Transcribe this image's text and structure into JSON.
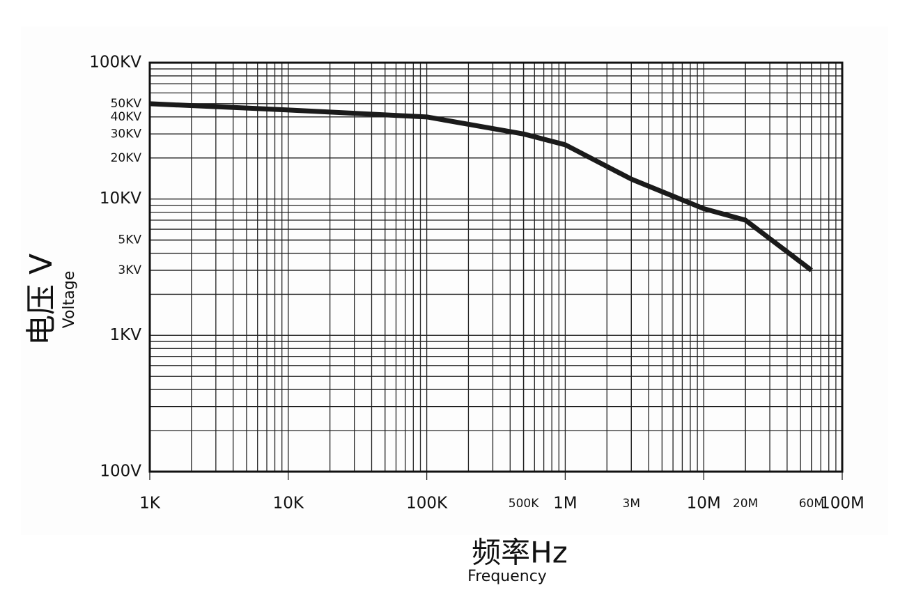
{
  "chart_data": {
    "type": "line",
    "x_label": "频率Hz",
    "x_label_sub": "Frequency",
    "y_label": "电压 V",
    "y_label_sub": "Voltage",
    "x": [
      1000,
      10000,
      100000,
      500000,
      1000000,
      3000000,
      10000000,
      20000000,
      60000000
    ],
    "series": [
      {
        "color": "#1a1a1a",
        "values": [
          50000,
          45000,
          40000,
          30000,
          25000,
          14000,
          8500,
          7000,
          3000
        ]
      }
    ],
    "xlog": true,
    "ylog": true,
    "grid": true,
    "minor_grid": true,
    "xlim": [
      1000,
      100000000
    ],
    "ylim": [
      100,
      100000
    ],
    "xticks": [
      {
        "value": 1000,
        "label": "1K"
      },
      {
        "value": 10000,
        "label": "10K"
      },
      {
        "value": 100000,
        "label": "100K"
      },
      {
        "value": 500000,
        "label": "500K"
      },
      {
        "value": 1000000,
        "label": "1M"
      },
      {
        "value": 3000000,
        "label": "3M"
      },
      {
        "value": 10000000,
        "label": "10M"
      },
      {
        "value": 20000000,
        "label": "20M"
      },
      {
        "value": 60000000,
        "label": "60M"
      },
      {
        "value": 100000000,
        "label": "100M"
      }
    ],
    "yticks": [
      {
        "value": 100,
        "label": "100V"
      },
      {
        "value": 1000,
        "label": "1KV"
      },
      {
        "value": 3000,
        "label": "3KV"
      },
      {
        "value": 5000,
        "label": "5KV"
      },
      {
        "value": 10000,
        "label": "10KV"
      },
      {
        "value": 20000,
        "label": "20KV"
      },
      {
        "value": 30000,
        "label": "30KV"
      },
      {
        "value": 40000,
        "label": "40KV"
      },
      {
        "value": 50000,
        "label": "50KV"
      },
      {
        "value": 100000,
        "label": "100KV"
      }
    ]
  }
}
